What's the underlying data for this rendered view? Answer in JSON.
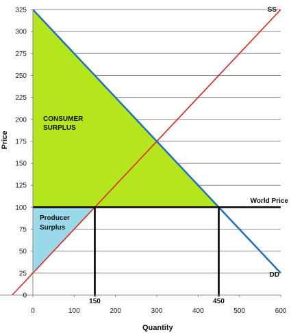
{
  "chart_data": {
    "type": "line",
    "xlabel": "Quantity",
    "ylabel": "Price",
    "xlim": [
      0,
      600
    ],
    "ylim": [
      0,
      325
    ],
    "x_ticks": [
      "0",
      "100",
      "200",
      "300",
      "400",
      "500",
      "600"
    ],
    "y_ticks": [
      "0",
      "25",
      "50",
      "75",
      "100",
      "125",
      "150",
      "175",
      "200",
      "225",
      "250",
      "275",
      "300",
      "325"
    ],
    "grid": true,
    "series": [
      {
        "name": "SS",
        "color": "#e8201e",
        "x": [
          -50,
          600
        ],
        "y": [
          0,
          325
        ]
      },
      {
        "name": "DD",
        "color": "#1f6fc4",
        "x": [
          0,
          600
        ],
        "y": [
          325,
          25
        ]
      },
      {
        "name": "World Price",
        "color": "#000000",
        "x": [
          0,
          600
        ],
        "y": [
          100,
          100
        ]
      }
    ],
    "areas": [
      {
        "label_lines": [
          "CONSUMER",
          "SURPLUS"
        ],
        "color": "#b5e61d",
        "points": [
          [
            0,
            325
          ],
          [
            0,
            100
          ],
          [
            450,
            100
          ]
        ]
      },
      {
        "label_lines": [
          "Producer",
          "Surplus"
        ],
        "color": "#99d9ea",
        "points": [
          [
            0,
            100
          ],
          [
            0,
            25
          ],
          [
            150,
            100
          ]
        ]
      }
    ],
    "vertical_markers": [
      {
        "x": 150,
        "label": "150"
      },
      {
        "x": 450,
        "label": "450"
      }
    ]
  }
}
